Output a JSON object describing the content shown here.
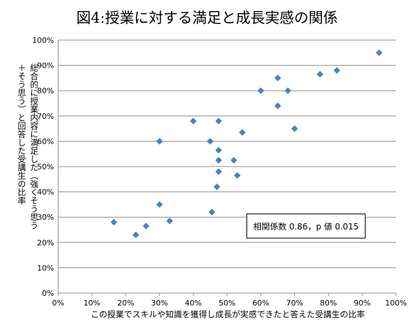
{
  "chart_data": {
    "type": "scatter",
    "title": "図4:授業に対する満足と成長実感の関係",
    "xlabel": "この授業でスキルや知識を獲得し成長が実感できたと答えた受講生の比率",
    "ylabel_lines": [
      "総合的に授業内容に満足した（強くそう思う",
      "＋そう思う）と回答した受講生の比率"
    ],
    "xlim": [
      0,
      100
    ],
    "ylim": [
      0,
      100
    ],
    "x_ticks": [
      "0%",
      "10%",
      "20%",
      "30%",
      "40%",
      "50%",
      "60%",
      "70%",
      "80%",
      "90%",
      "100%"
    ],
    "y_ticks": [
      "0%",
      "10%",
      "20%",
      "30%",
      "40%",
      "50%",
      "60%",
      "70%",
      "80%",
      "90%",
      "100%"
    ],
    "grid": "horizontal",
    "marker_color": "#4f81bd",
    "annotation": "相関係数 0.86，p 値 0.015",
    "points": [
      {
        "x": 95,
        "y": 95
      },
      {
        "x": 82.5,
        "y": 88
      },
      {
        "x": 77.5,
        "y": 86.5
      },
      {
        "x": 65,
        "y": 85
      },
      {
        "x": 60,
        "y": 80
      },
      {
        "x": 68,
        "y": 80
      },
      {
        "x": 65,
        "y": 74
      },
      {
        "x": 70,
        "y": 65
      },
      {
        "x": 40,
        "y": 68
      },
      {
        "x": 47.5,
        "y": 68
      },
      {
        "x": 54.5,
        "y": 63.5
      },
      {
        "x": 30,
        "y": 60
      },
      {
        "x": 45,
        "y": 60
      },
      {
        "x": 47.5,
        "y": 56.5
      },
      {
        "x": 47.5,
        "y": 52.5
      },
      {
        "x": 52,
        "y": 52.5
      },
      {
        "x": 47.5,
        "y": 48
      },
      {
        "x": 53,
        "y": 46.5
      },
      {
        "x": 47,
        "y": 42
      },
      {
        "x": 30,
        "y": 35
      },
      {
        "x": 45.5,
        "y": 32
      },
      {
        "x": 33,
        "y": 28.5
      },
      {
        "x": 16.5,
        "y": 28
      },
      {
        "x": 26,
        "y": 26.5
      },
      {
        "x": 23,
        "y": 23
      }
    ]
  }
}
